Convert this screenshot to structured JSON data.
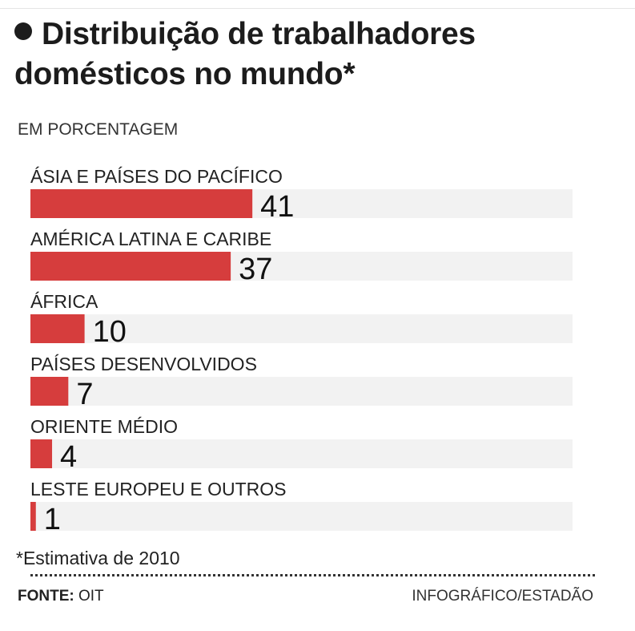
{
  "title": "Distribuição de trabalhadores domésticos no mundo*",
  "subtitle": "EM PORCENTAGEM",
  "footnote": "*Estimativa de 2010",
  "source_label": "FONTE:",
  "source_value": "OIT",
  "credit": "INFOGRÁFICO/ESTADÃO",
  "colors": {
    "bar": "#d63d3d",
    "track": "#f2f2f2",
    "text": "#1a1a1a"
  },
  "chart_data": {
    "type": "bar",
    "orientation": "horizontal",
    "title": "Distribuição de trabalhadores domésticos no mundo*",
    "unit": "EM PORCENTAGEM",
    "xlim": [
      0,
      100
    ],
    "categories": [
      "ÁSIA E PAÍSES DO PACÍFICO",
      "AMÉRICA LATINA E CARIBE",
      "ÁFRICA",
      "PAÍSES DESENVOLVIDOS",
      "ORIENTE MÉDIO",
      "LESTE EUROPEU E OUTROS"
    ],
    "values": [
      41,
      37,
      10,
      7,
      4,
      1
    ]
  }
}
